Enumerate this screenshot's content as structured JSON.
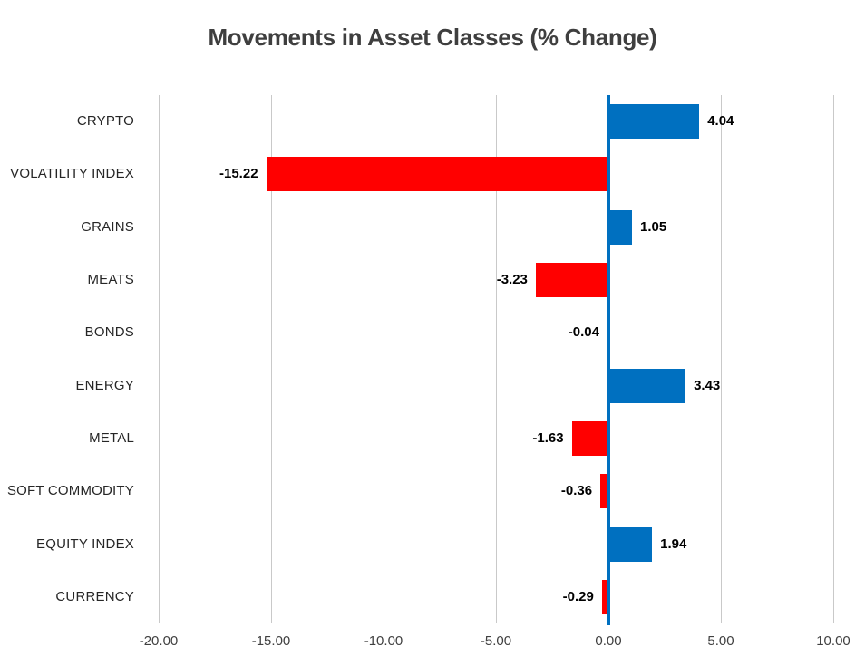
{
  "chart_data": {
    "type": "bar",
    "orientation": "horizontal",
    "title": "Movements in Asset Classes (% Change)",
    "categories": [
      "CRYPTO",
      "VOLATILITY INDEX",
      "GRAINS",
      "MEATS",
      "BONDS",
      "ENERGY",
      "METAL",
      "SOFT COMMODITY",
      "EQUITY INDEX",
      "CURRENCY"
    ],
    "values": [
      4.04,
      -15.22,
      1.05,
      -3.23,
      -0.04,
      3.43,
      -1.63,
      -0.36,
      1.94,
      -0.29
    ],
    "value_labels": [
      "4.04",
      "-15.22",
      "1.05",
      "-3.23",
      "-0.04",
      "3.43",
      "-1.63",
      "-0.36",
      "1.94",
      "-0.29"
    ],
    "x_ticks": [
      -20,
      -15,
      -10,
      -5,
      0,
      5,
      10
    ],
    "x_tick_labels": [
      "-20.00",
      "-15.00",
      "-10.00",
      "-5.00",
      "0.00",
      "5.00",
      "10.00"
    ],
    "xlim": [
      -20,
      10
    ],
    "grid": true,
    "legend": false,
    "colors": {
      "positive_bar": "#0070C0",
      "negative_bar": "#FF0000",
      "zero_axis": "#0070C0",
      "gridline": "#C9C9C9",
      "title": "#3F3F3F",
      "category_label": "#262626",
      "tick_label": "#404040",
      "value_label": "#000000",
      "background": "#FFFFFF"
    }
  }
}
